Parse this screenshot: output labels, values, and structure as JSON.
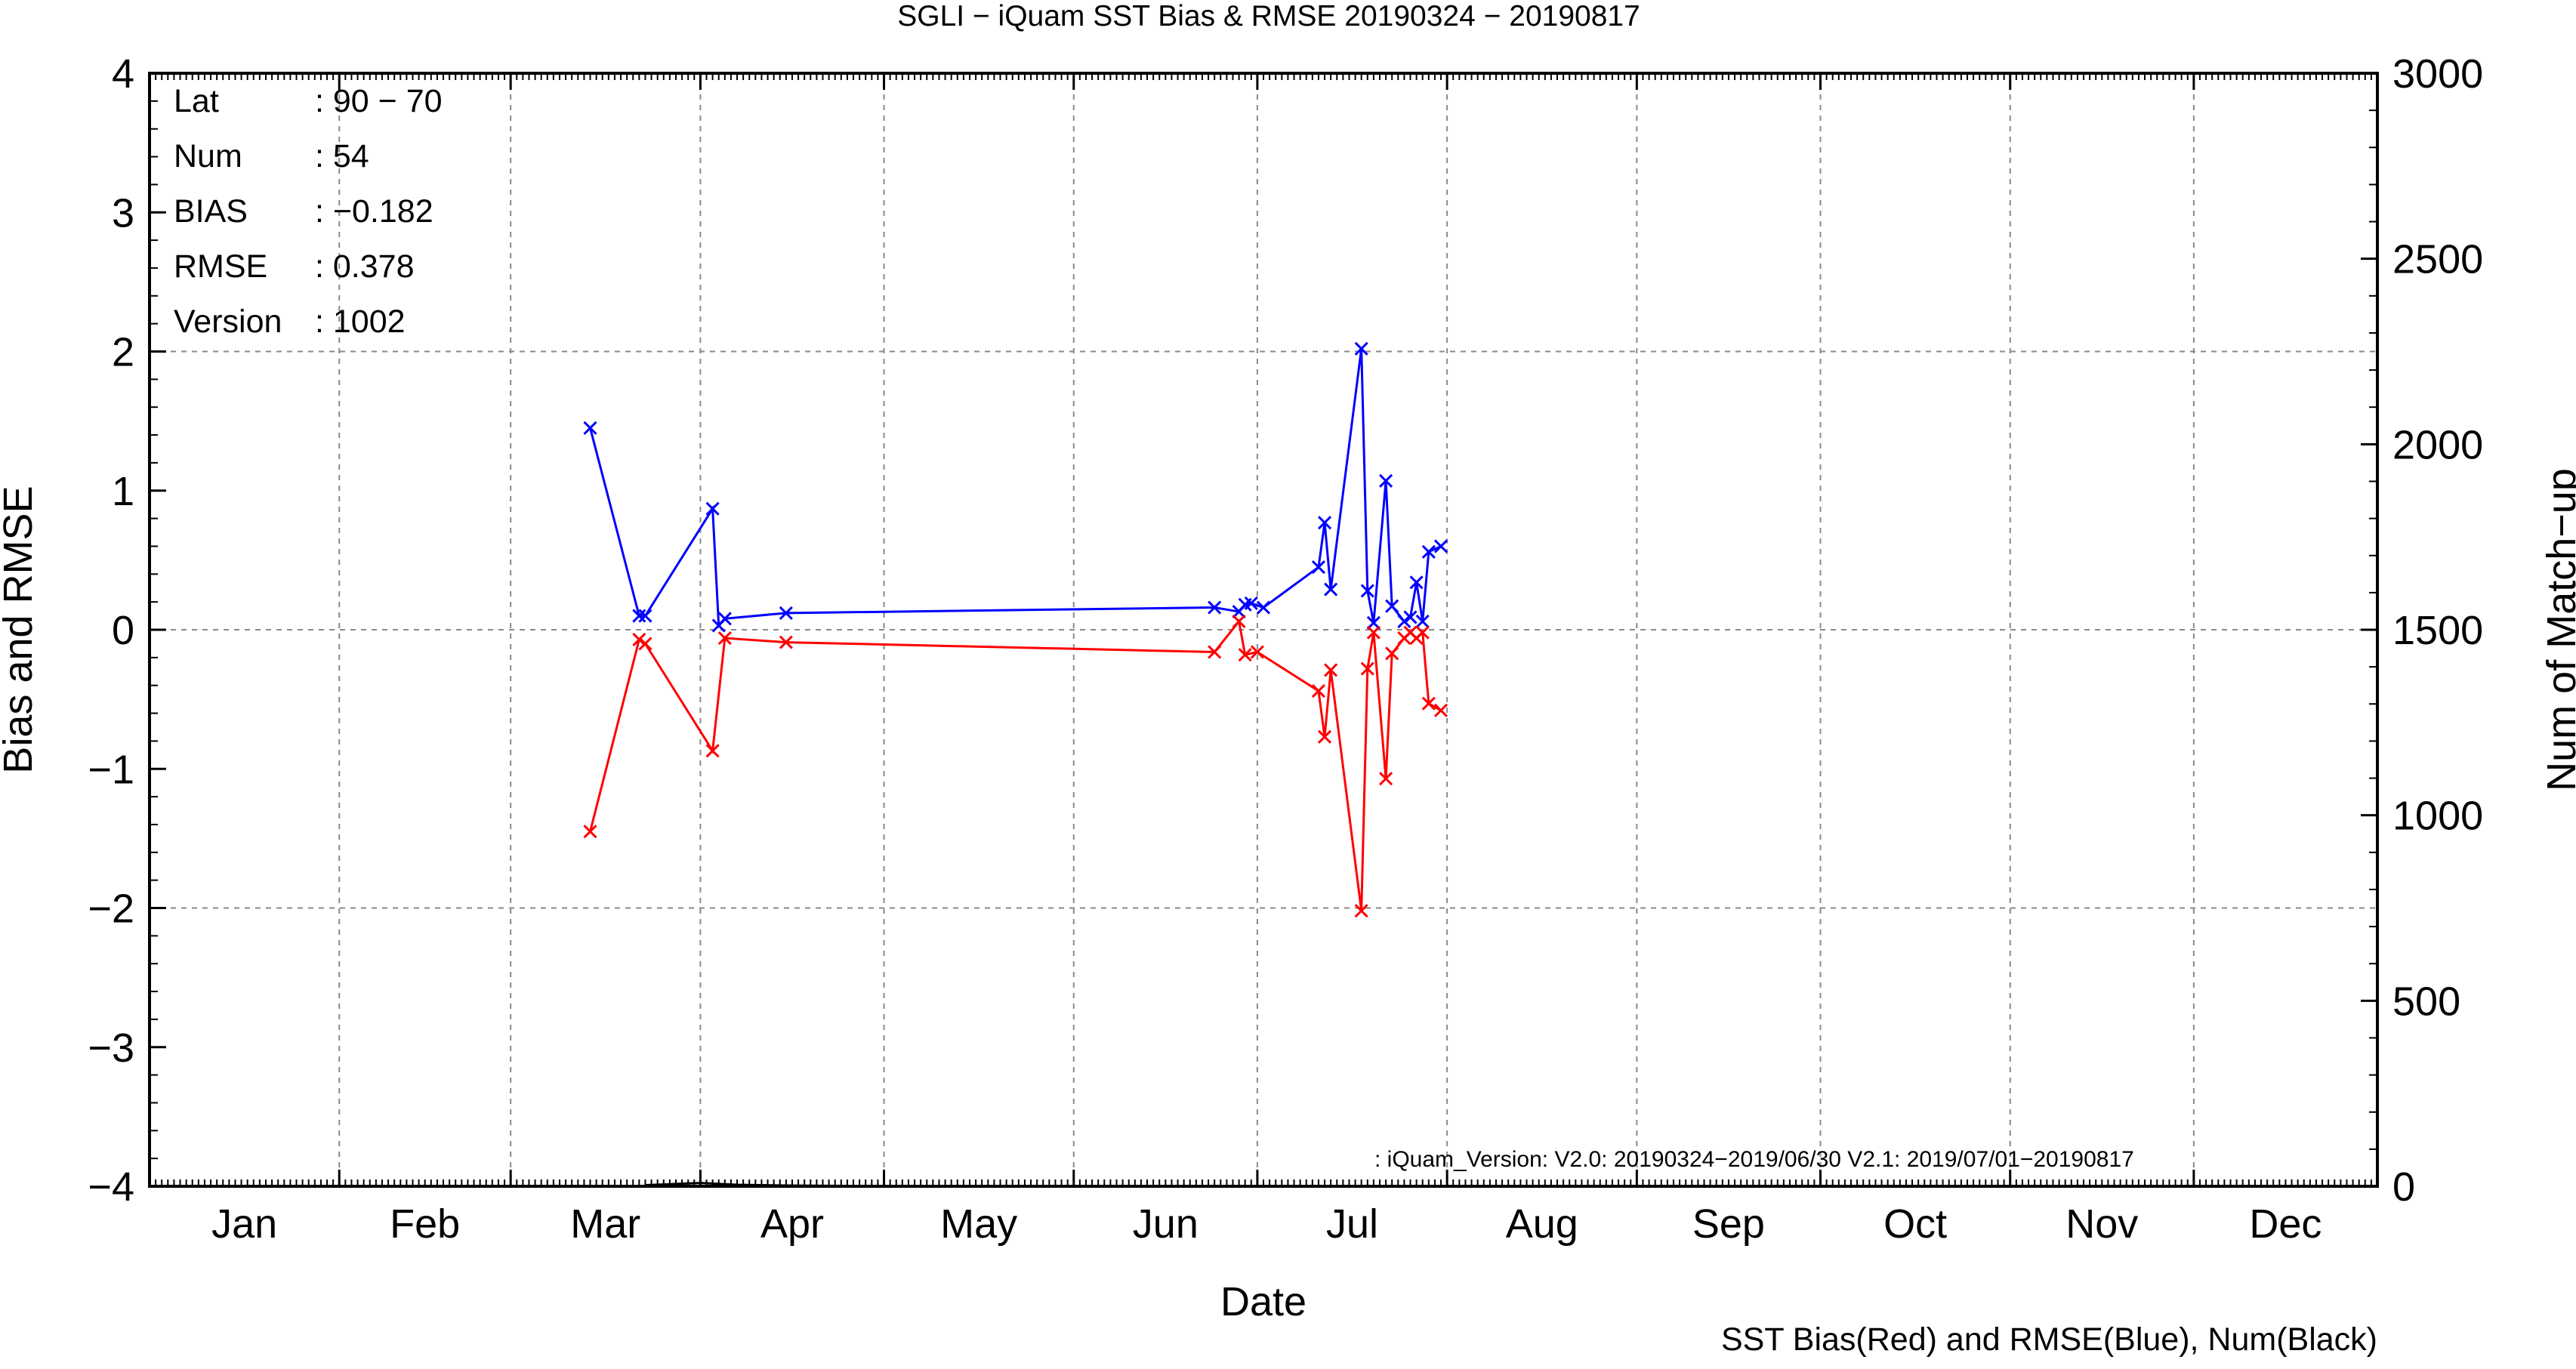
{
  "chart_data": {
    "type": "line",
    "title": "SGLI − iQuam  SST Bias & RMSE 20190324 − 20190817",
    "xlabel": "Date",
    "ylabel": "Bias and RMSE",
    "y2label": "Num of Match−up",
    "footer": "SST Bias(Red) and RMSE(Blue), Num(Black)",
    "note": ": iQuam_Version: V2.0: 20190324−2019/06/30 V2.1: 2019/07/01−20190817",
    "x_tick_labels": [
      "Jan",
      "Feb",
      "Mar",
      "Apr",
      "May",
      "Jun",
      "Jul",
      "Aug",
      "Sep",
      "Oct",
      "Nov",
      "Dec"
    ],
    "y_ticks": [
      "4",
      "3",
      "2",
      "1",
      "0",
      "−1",
      "−2",
      "−3",
      "−4"
    ],
    "y2_ticks": [
      "3000",
      "2500",
      "2000",
      "1500",
      "1000",
      "500",
      "0"
    ],
    "ylim": [
      -4,
      4
    ],
    "y2lim": [
      0,
      3000
    ],
    "xlim": [
      "2019-01-01",
      "2019-12-31"
    ],
    "grid": true,
    "stats": [
      {
        "label": "Lat",
        "value": ": 90 − 70"
      },
      {
        "label": "Num",
        "value": ": 54"
      },
      {
        "label": "BIAS",
        "value": ": −0.182"
      },
      {
        "label": "RMSE",
        "value": ": 0.378"
      },
      {
        "label": "Version",
        "value": ": 1002"
      }
    ],
    "series": [
      {
        "color": "#0000ff",
        "points": [
          [
            "2019-03-14",
            1.45
          ],
          [
            "2019-03-22",
            0.1
          ],
          [
            "2019-03-23",
            0.1
          ],
          [
            "2019-04-03",
            0.87
          ],
          [
            "2019-04-04",
            0.03
          ],
          [
            "2019-04-05",
            0.08
          ],
          [
            "2019-04-15",
            0.12
          ],
          [
            "2019-06-24",
            0.16
          ],
          [
            "2019-06-28",
            0.13
          ],
          [
            "2019-06-29",
            0.18
          ],
          [
            "2019-06-30",
            0.19
          ],
          [
            "2019-07-02",
            0.16
          ],
          [
            "2019-07-11",
            0.45
          ],
          [
            "2019-07-12",
            0.77
          ],
          [
            "2019-07-13",
            0.29
          ],
          [
            "2019-07-18",
            2.02
          ],
          [
            "2019-07-19",
            0.28
          ],
          [
            "2019-07-20",
            0.05
          ],
          [
            "2019-07-22",
            1.07
          ],
          [
            "2019-07-23",
            0.17
          ],
          [
            "2019-07-25",
            0.06
          ],
          [
            "2019-07-26",
            0.09
          ],
          [
            "2019-07-27",
            0.34
          ],
          [
            "2019-07-28",
            0.06
          ],
          [
            "2019-07-29",
            0.56
          ],
          [
            "2019-07-31",
            0.6
          ]
        ]
      },
      {
        "color": "#ff0000",
        "points": [
          [
            "2019-03-14",
            -1.45
          ],
          [
            "2019-03-22",
            -0.07
          ],
          [
            "2019-03-23",
            -0.1
          ],
          [
            "2019-04-03",
            -0.87
          ],
          [
            "2019-04-05",
            -0.06
          ],
          [
            "2019-04-15",
            -0.09
          ],
          [
            "2019-06-24",
            -0.16
          ],
          [
            "2019-06-28",
            0.06
          ],
          [
            "2019-06-29",
            -0.18
          ],
          [
            "2019-07-01",
            -0.16
          ],
          [
            "2019-07-11",
            -0.44
          ],
          [
            "2019-07-12",
            -0.77
          ],
          [
            "2019-07-13",
            -0.29
          ],
          [
            "2019-07-18",
            -2.02
          ],
          [
            "2019-07-19",
            -0.28
          ],
          [
            "2019-07-20",
            -0.02
          ],
          [
            "2019-07-22",
            -1.07
          ],
          [
            "2019-07-23",
            -0.17
          ],
          [
            "2019-07-25",
            -0.06
          ],
          [
            "2019-07-26",
            -0.02
          ],
          [
            "2019-07-27",
            -0.06
          ],
          [
            "2019-07-28",
            -0.02
          ],
          [
            "2019-07-29",
            -0.53
          ],
          [
            "2019-07-31",
            -0.58
          ]
        ]
      },
      {
        "color": "#000000",
        "points": [
          [
            "2019-03-23",
            3
          ],
          [
            "2019-04-01",
            9
          ],
          [
            "2019-04-07",
            4
          ],
          [
            "2019-04-15",
            2
          ],
          [
            "2019-04-25",
            1
          ],
          [
            "2019-06-30",
            1
          ]
        ]
      }
    ]
  }
}
